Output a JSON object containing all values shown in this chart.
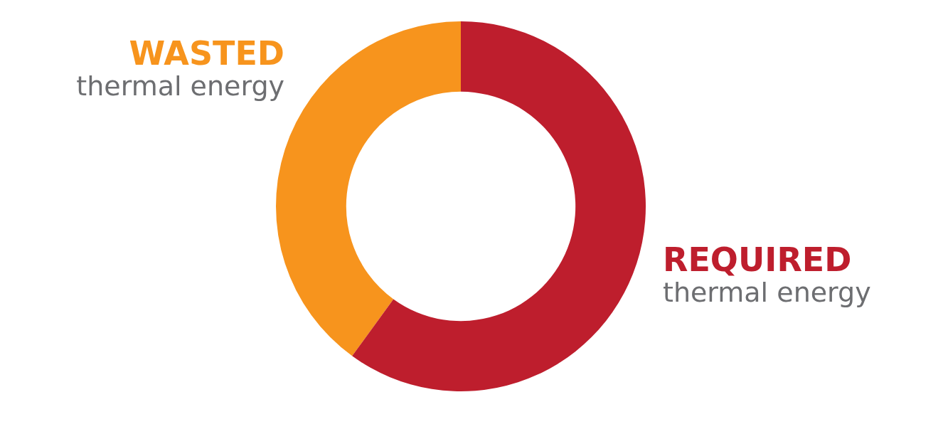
{
  "chart_data": {
    "type": "donut",
    "categories": [
      "WASTED\nthermal energy",
      "REQUIRED\nthermal energy"
    ],
    "values": [
      40,
      60
    ],
    "colors": [
      "#f7941d",
      "#be1e2d"
    ],
    "legend": false
  }
}
